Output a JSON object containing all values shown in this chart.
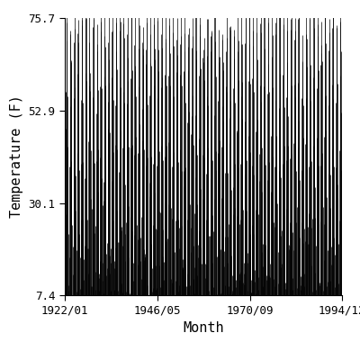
{
  "title": "",
  "xlabel": "Month",
  "ylabel": "Temperature (F)",
  "start_year": 1922,
  "start_month": 1,
  "end_year": 1994,
  "end_month": 12,
  "temp_mean": 41.55,
  "temp_amplitude": 34.15,
  "ylim": [
    7.4,
    75.7
  ],
  "yticks": [
    7.4,
    30.1,
    52.9,
    75.7
  ],
  "xtick_labels": [
    "1922/01",
    "1946/05",
    "1970/09",
    "1994/12"
  ],
  "line_color": "#000000",
  "line_width": 0.5,
  "background_color": "#ffffff",
  "font_family": "monospace",
  "noise_std": 4.5,
  "noise_seed": 42,
  "vline_baseline": 7.4,
  "figsize": [
    4.0,
    4.0
  ],
  "dpi": 100
}
